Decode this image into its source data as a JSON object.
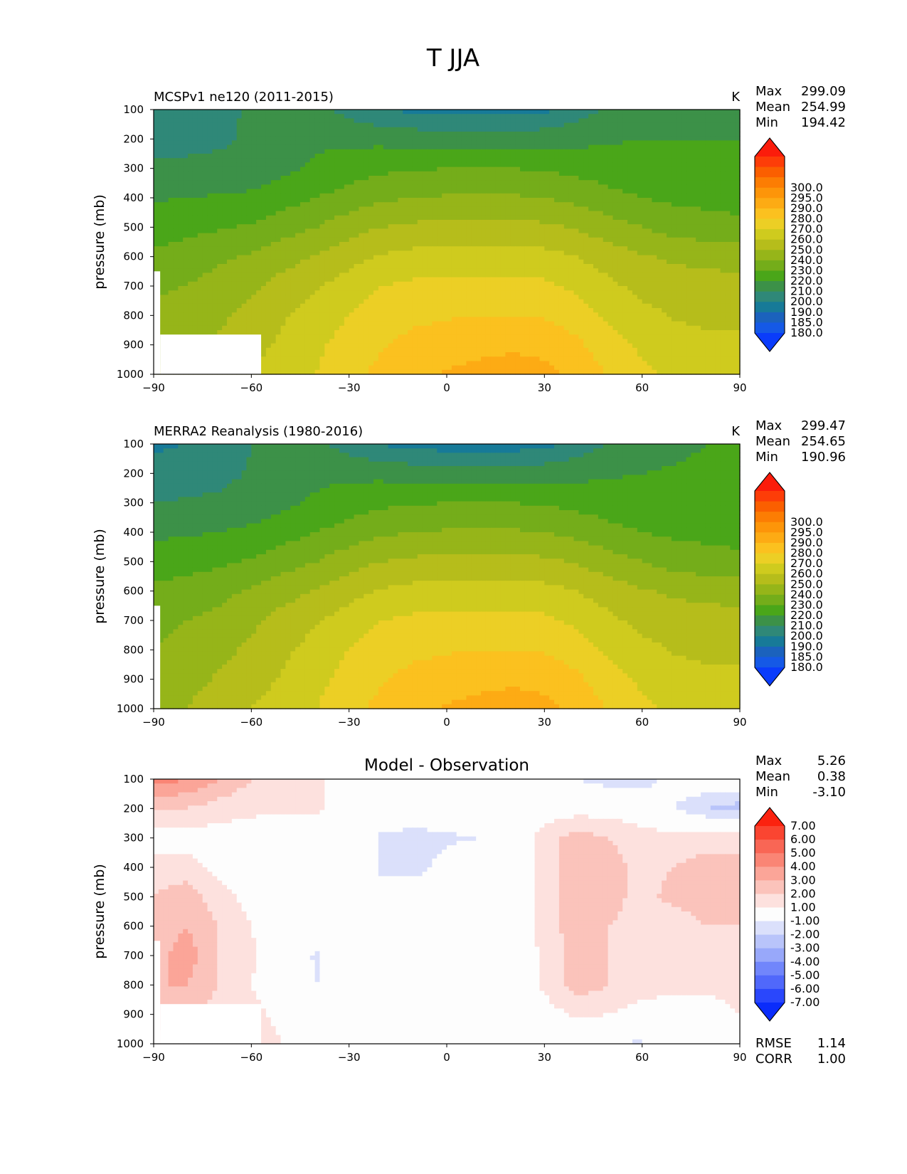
{
  "figure": {
    "title": "T JJA"
  },
  "colors": {
    "temperature_fill": [
      "#0a3cfb",
      "#1559e6",
      "#1b62bd",
      "#177a98",
      "#2f8878",
      "#3c9148",
      "#4aa619",
      "#74ad1a",
      "#96b519",
      "#b6bd1b",
      "#cfcb1e",
      "#eccf25",
      "#fbc11f",
      "#fdab14",
      "#fd9509",
      "#fc7d03",
      "#fb5f00",
      "#fd3d08",
      "#fb1c0b"
    ],
    "difference_fill": [
      "#0a2cfb",
      "#2a47fc",
      "#5068fb",
      "#7186fb",
      "#98a8fa",
      "#b9c4fa",
      "#dbe0fb",
      "#fdfdfd",
      "#fde1de",
      "#fbc3bb",
      "#fba598",
      "#fa8575",
      "#f96655",
      "#fa4531",
      "#fb220f"
    ]
  },
  "chart_data": [
    {
      "type": "heatmap",
      "title": "MCSPv1 ne120 (2011-2015)",
      "units": "K",
      "ylabel": "pressure (mb)",
      "x_ticks": [
        "−90",
        "−60",
        "−30",
        "0",
        "30",
        "60",
        "90"
      ],
      "y_ticks": [
        "100",
        "200",
        "300",
        "400",
        "500",
        "600",
        "700",
        "800",
        "900",
        "1000"
      ],
      "xlim": [
        -90,
        90
      ],
      "ylim": [
        1000,
        100
      ],
      "stats": {
        "max_label": "Max",
        "max": "299.09",
        "mean_label": "Mean",
        "mean": "254.99",
        "min_label": "Min",
        "min": "194.42"
      },
      "colorbar_levels": [
        "180.0",
        "185.0",
        "190.0",
        "200.0",
        "210.0",
        "220.0",
        "230.0",
        "240.0",
        "250.0",
        "260.0",
        "270.0",
        "280.0",
        "290.0",
        "295.0",
        "300.0"
      ],
      "field": {
        "kind": "temperature",
        "lat": [
          -90,
          -80,
          -70,
          -60,
          -50,
          -40,
          -30,
          -20,
          -10,
          0,
          10,
          20,
          30,
          40,
          50,
          60,
          70,
          80,
          90
        ],
        "pressure": [
          100,
          200,
          300,
          400,
          500,
          600,
          700,
          800,
          900,
          1000
        ],
        "values": [
          [
            202,
            204,
            206,
            212,
            218,
            214,
            206,
            200,
            198,
            196,
            196,
            196,
            198,
            205,
            212,
            217,
            218,
            218,
            218
          ],
          [
            206,
            207,
            208,
            212,
            216,
            218,
            218,
            217,
            216,
            215,
            215,
            215,
            216,
            217,
            219,
            220,
            220,
            220,
            220
          ],
          [
            212,
            212,
            213,
            214,
            218,
            222,
            225,
            228,
            229,
            230,
            230,
            230,
            229,
            227,
            225,
            223,
            222,
            221,
            220
          ],
          [
            219,
            220,
            221,
            222,
            226,
            230,
            234,
            238,
            240,
            241,
            241,
            241,
            240,
            237,
            233,
            230,
            228,
            227,
            226
          ],
          [
            225,
            227,
            229,
            231,
            236,
            240,
            246,
            250,
            252,
            253,
            253,
            253,
            252,
            249,
            244,
            240,
            236,
            234,
            233
          ],
          [
            232,
            235,
            238,
            241,
            246,
            251,
            256,
            261,
            263,
            264,
            264,
            264,
            263,
            260,
            255,
            251,
            248,
            247,
            246
          ],
          [
            238,
            240,
            244,
            248,
            254,
            259,
            265,
            270,
            272,
            273,
            273,
            273,
            272,
            268,
            262,
            257,
            255,
            254,
            253
          ],
          [
            243,
            245,
            248,
            253,
            259,
            264,
            270,
            275,
            278,
            279,
            280,
            280,
            279,
            275,
            268,
            263,
            259,
            258,
            258
          ],
          [
            247,
            249,
            252,
            257,
            262,
            268,
            274,
            279,
            283,
            285,
            287,
            288,
            287,
            282,
            274,
            268,
            264,
            262,
            262
          ],
          [
            251,
            253,
            256,
            260,
            265,
            270,
            277,
            283,
            288,
            291,
            293,
            295,
            293,
            287,
            279,
            272,
            268,
            266,
            265
          ]
        ],
        "mask": [
          {
            "lat": [
              -90,
              -88
            ],
            "p": [
              650,
              1000
            ]
          },
          {
            "lat": [
              -88,
              -57
            ],
            "p": [
              865,
              1000
            ]
          }
        ]
      }
    },
    {
      "type": "heatmap",
      "title": "MERRA2 Reanalysis (1980-2016)",
      "units": "K",
      "ylabel": "pressure (mb)",
      "x_ticks": [
        "−90",
        "−60",
        "−30",
        "0",
        "30",
        "60",
        "90"
      ],
      "y_ticks": [
        "100",
        "200",
        "300",
        "400",
        "500",
        "600",
        "700",
        "800",
        "900",
        "1000"
      ],
      "xlim": [
        -90,
        90
      ],
      "ylim": [
        1000,
        100
      ],
      "stats": {
        "max_label": "Max",
        "max": "299.47",
        "mean_label": "Mean",
        "mean": "254.65",
        "min_label": "Min",
        "min": "190.96"
      },
      "colorbar_levels": [
        "180.0",
        "185.0",
        "190.0",
        "200.0",
        "210.0",
        "220.0",
        "230.0",
        "240.0",
        "250.0",
        "260.0",
        "270.0",
        "280.0",
        "290.0",
        "295.0",
        "300.0"
      ],
      "field": {
        "kind": "temperature",
        "lat": [
          -90,
          -80,
          -70,
          -60,
          -50,
          -40,
          -30,
          -20,
          -10,
          0,
          10,
          20,
          30,
          40,
          50,
          60,
          70,
          80,
          90
        ],
        "pressure": [
          100,
          200,
          300,
          400,
          500,
          600,
          700,
          800,
          900,
          1000
        ],
        "values": [
          [
            198,
            200,
            204,
            210,
            216,
            213,
            205,
            199,
            197,
            195,
            195,
            195,
            197,
            204,
            211,
            216,
            218,
            220,
            222
          ],
          [
            204,
            205,
            207,
            211,
            215,
            217,
            218,
            217,
            216,
            215,
            215,
            215,
            216,
            217,
            219,
            220,
            221,
            222,
            222
          ],
          [
            210,
            211,
            212,
            214,
            218,
            222,
            225,
            228,
            229,
            230,
            230,
            230,
            229,
            227,
            225,
            223,
            222,
            221,
            220
          ],
          [
            218,
            219,
            220,
            222,
            226,
            230,
            234,
            238,
            240,
            241,
            241,
            241,
            240,
            237,
            233,
            230,
            228,
            227,
            226
          ],
          [
            225,
            226,
            228,
            231,
            236,
            240,
            246,
            250,
            252,
            253,
            253,
            253,
            252,
            249,
            244,
            240,
            236,
            234,
            233
          ],
          [
            232,
            234,
            237,
            241,
            246,
            251,
            256,
            261,
            263,
            264,
            264,
            264,
            263,
            260,
            255,
            251,
            248,
            247,
            246
          ],
          [
            237,
            240,
            243,
            248,
            254,
            259,
            265,
            270,
            272,
            273,
            273,
            273,
            272,
            268,
            262,
            257,
            255,
            254,
            253
          ],
          [
            240,
            244,
            247,
            252,
            258,
            264,
            270,
            275,
            278,
            279,
            280,
            280,
            279,
            275,
            268,
            263,
            259,
            258,
            258
          ],
          [
            243,
            247,
            251,
            256,
            261,
            267,
            274,
            279,
            283,
            285,
            287,
            288,
            287,
            282,
            274,
            268,
            264,
            262,
            262
          ],
          [
            245,
            250,
            255,
            260,
            265,
            270,
            277,
            283,
            288,
            291,
            293,
            295,
            293,
            287,
            279,
            272,
            268,
            266,
            265
          ]
        ],
        "mask": [
          {
            "lat": [
              -90,
              -88
            ],
            "p": [
              650,
              1000
            ]
          }
        ]
      }
    },
    {
      "type": "heatmap",
      "title": "Model - Observation",
      "units": "",
      "ylabel": "pressure (mb)",
      "x_ticks": [
        "−90",
        "−60",
        "−30",
        "0",
        "30",
        "60",
        "90"
      ],
      "y_ticks": [
        "100",
        "200",
        "300",
        "400",
        "500",
        "600",
        "700",
        "800",
        "900",
        "1000"
      ],
      "xlim": [
        -90,
        90
      ],
      "ylim": [
        1000,
        100
      ],
      "stats": {
        "max_label": "Max",
        "max": "5.26",
        "mean_label": "Mean",
        "mean": "0.38",
        "min_label": "Min",
        "min": "-3.10"
      },
      "colorbar_levels": [
        "-7.00",
        "-6.00",
        "-5.00",
        "-4.00",
        "-3.00",
        "-2.00",
        "-1.00",
        "1.00",
        "2.00",
        "3.00",
        "4.00",
        "5.00",
        "6.00",
        "7.00"
      ],
      "metrics": {
        "rmse_label": "RMSE",
        "rmse": "1.14",
        "corr_label": "CORR",
        "corr": "1.00"
      },
      "field": {
        "kind": "difference",
        "lat": [
          -90,
          -80,
          -70,
          -60,
          -50,
          -40,
          -30,
          -20,
          -10,
          0,
          10,
          20,
          30,
          40,
          50,
          60,
          70,
          80,
          90
        ],
        "pressure": [
          100,
          200,
          300,
          400,
          500,
          600,
          700,
          800,
          900,
          1000
        ],
        "values": [
          [
            4.5,
            4.0,
            3.0,
            2.0,
            1.5,
            1.2,
            0.5,
            0.5,
            0.2,
            0.0,
            0.0,
            -0.5,
            -0.5,
            -1.0,
            -1.5,
            -1.5,
            -0.5,
            0.0,
            0.0
          ],
          [
            2.0,
            2.0,
            1.5,
            1.2,
            1.2,
            1.2,
            0.5,
            0.0,
            0.0,
            0.0,
            0.0,
            0.0,
            0.3,
            0.5,
            0.5,
            0.2,
            -1.0,
            -2.0,
            -2.5
          ],
          [
            0.5,
            0.5,
            0.5,
            0.5,
            0.2,
            0.0,
            0.0,
            -1.2,
            -1.5,
            -1.2,
            -1.0,
            0.0,
            1.5,
            2.5,
            2.0,
            1.5,
            1.5,
            1.5,
            1.5
          ],
          [
            1.5,
            1.5,
            0.5,
            0.0,
            0.0,
            0.0,
            0.0,
            -1.2,
            -1.5,
            -0.5,
            0.0,
            0.0,
            1.5,
            2.5,
            2.5,
            1.5,
            2.0,
            2.5,
            2.5
          ],
          [
            2.0,
            2.5,
            1.5,
            0.5,
            0.0,
            0.0,
            0.0,
            -0.5,
            0.0,
            0.0,
            0.0,
            0.0,
            1.5,
            2.5,
            2.5,
            1.5,
            2.5,
            3.0,
            3.0
          ],
          [
            2.5,
            3.0,
            2.0,
            1.0,
            0.0,
            0.0,
            0.0,
            0.0,
            0.0,
            0.0,
            0.0,
            0.0,
            1.5,
            2.5,
            2.0,
            1.5,
            1.0,
            2.0,
            2.0
          ],
          [
            2.5,
            3.5,
            2.0,
            1.2,
            0.2,
            -1.2,
            0.0,
            0.0,
            0.0,
            0.0,
            0.0,
            0.0,
            1.2,
            2.5,
            2.0,
            1.5,
            1.2,
            1.2,
            1.5
          ],
          [
            3.0,
            3.0,
            2.0,
            1.0,
            0.0,
            -1.0,
            0.0,
            0.0,
            0.0,
            0.0,
            0.0,
            0.0,
            1.2,
            2.5,
            2.0,
            1.5,
            1.2,
            1.2,
            1.5
          ],
          [
            2.5,
            2.5,
            1.5,
            1.5,
            0.5,
            0.0,
            0.0,
            0.0,
            0.0,
            0.0,
            0.0,
            0.0,
            0.5,
            1.2,
            1.0,
            0.5,
            0.5,
            0.5,
            1.0
          ],
          [
            1.5,
            1.5,
            1.5,
            2.0,
            1.0,
            0.5,
            0.0,
            0.0,
            0.0,
            0.0,
            0.0,
            0.0,
            0.0,
            -0.5,
            -1.0,
            -1.2,
            0.0,
            0.0,
            0.0
          ]
        ],
        "mask": [
          {
            "lat": [
              -90,
              -88
            ],
            "p": [
              650,
              1000
            ]
          },
          {
            "lat": [
              -88,
              -57
            ],
            "p": [
              865,
              1000
            ]
          }
        ]
      }
    }
  ]
}
